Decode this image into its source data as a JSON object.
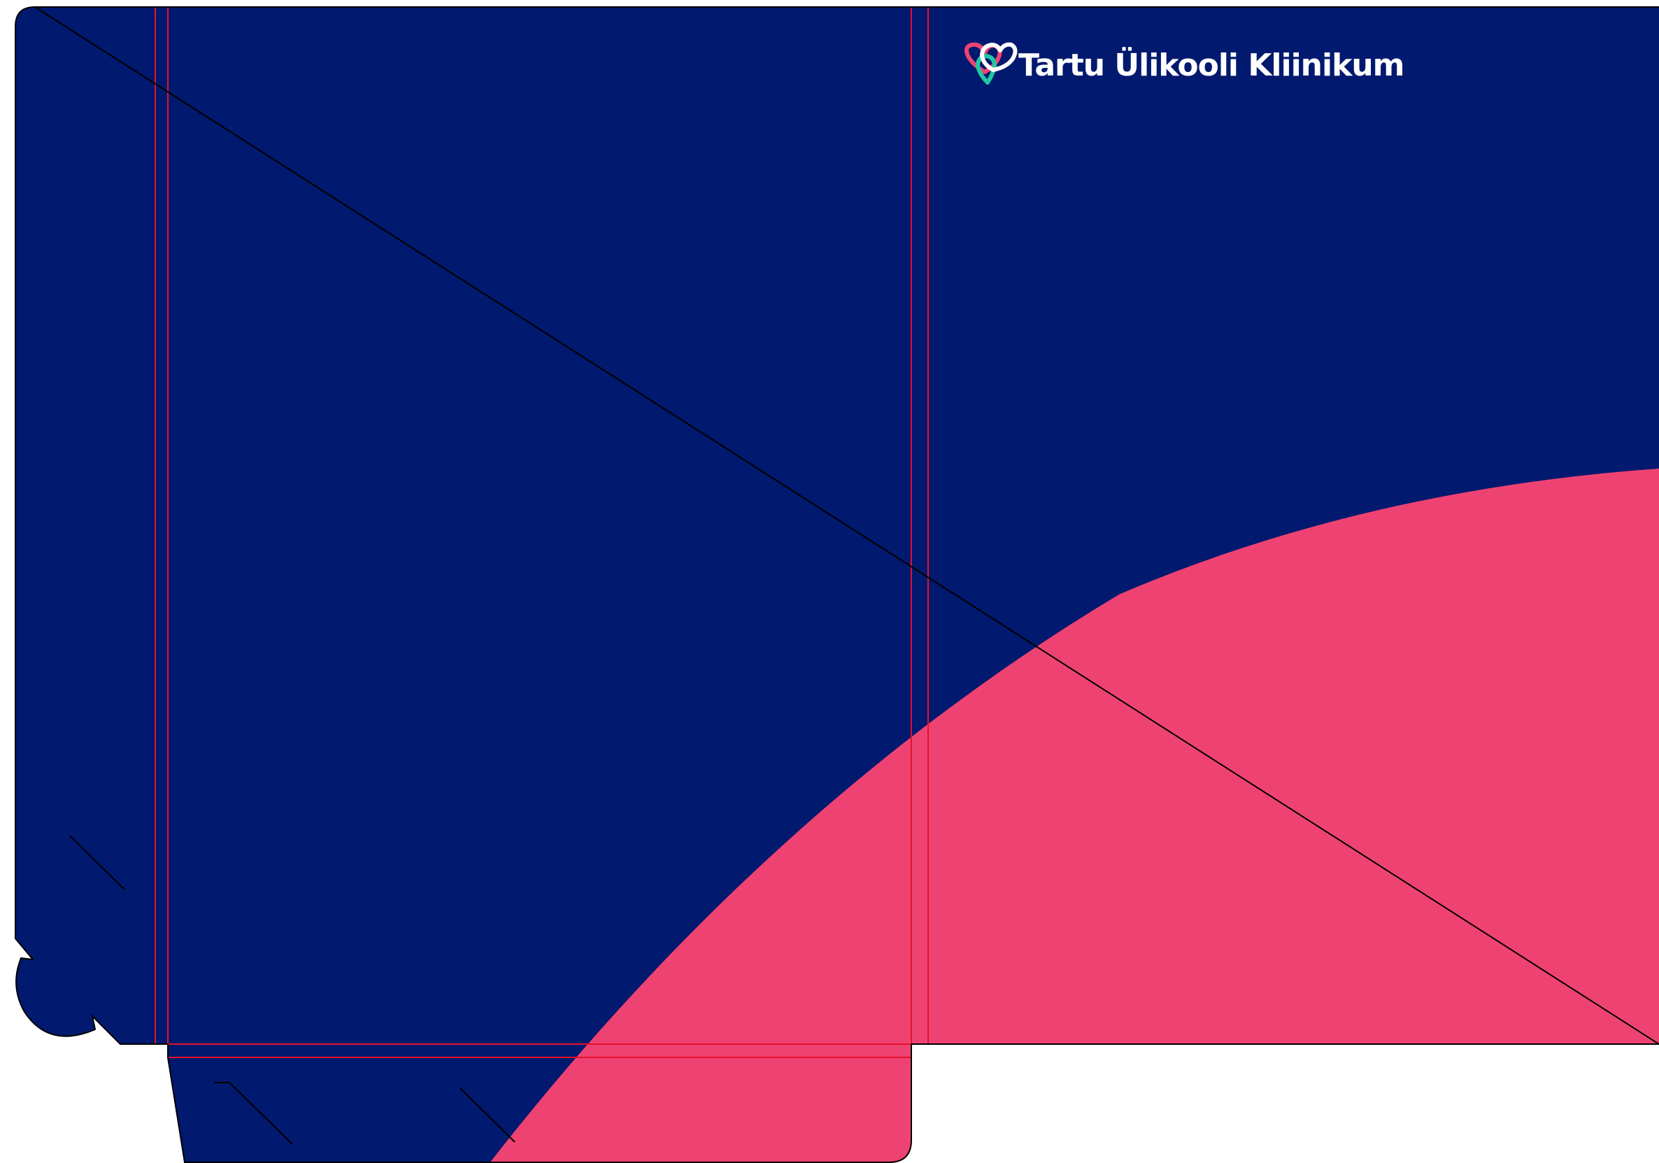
{
  "brand": {
    "name": "Tartu Ülikooli Kliinikum"
  },
  "colors": {
    "navy": "#01196E",
    "pink": "#EE4372",
    "teal": "#1FC8A2",
    "white": "#FFFFFF",
    "cut_line": "#000000",
    "fold_line": "#E8102A"
  },
  "icons": {
    "logo": "intertwined-hearts-logo-icon"
  }
}
